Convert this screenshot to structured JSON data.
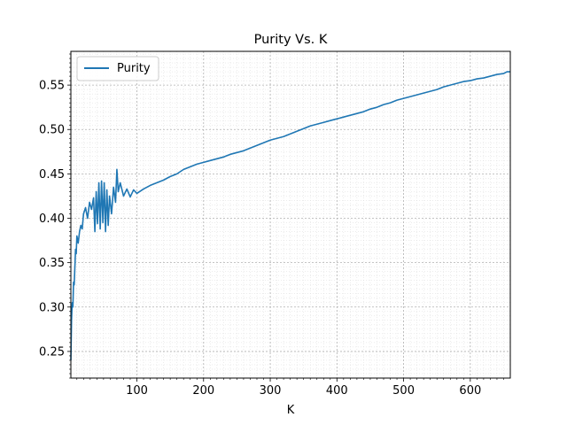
{
  "chart_data": {
    "type": "line",
    "title": "Purity Vs. K",
    "xlabel": "K",
    "ylabel": "",
    "xlim": [
      1,
      660
    ],
    "ylim": [
      0.22,
      0.588
    ],
    "xticks": [
      100,
      200,
      300,
      400,
      500,
      600
    ],
    "yticks": [
      0.25,
      0.3,
      0.35,
      0.4,
      0.45,
      0.5,
      0.55
    ],
    "ytick_labels": [
      "0.25",
      "0.30",
      "0.35",
      "0.40",
      "0.45",
      "0.50",
      "0.55"
    ],
    "grid": "major and minor, dotted",
    "legend_position": "upper-left",
    "series": [
      {
        "name": "Purity",
        "color": "#1f77b4",
        "points": [
          [
            1,
            0.24
          ],
          [
            2,
            0.285
          ],
          [
            3,
            0.305
          ],
          [
            4,
            0.3
          ],
          [
            5,
            0.328
          ],
          [
            6,
            0.325
          ],
          [
            7,
            0.345
          ],
          [
            8,
            0.365
          ],
          [
            9,
            0.36
          ],
          [
            10,
            0.38
          ],
          [
            12,
            0.372
          ],
          [
            14,
            0.385
          ],
          [
            16,
            0.392
          ],
          [
            18,
            0.388
          ],
          [
            20,
            0.405
          ],
          [
            23,
            0.412
          ],
          [
            26,
            0.4
          ],
          [
            29,
            0.418
          ],
          [
            32,
            0.41
          ],
          [
            35,
            0.423
          ],
          [
            37,
            0.385
          ],
          [
            39,
            0.43
          ],
          [
            41,
            0.394
          ],
          [
            43,
            0.44
          ],
          [
            45,
            0.388
          ],
          [
            47,
            0.442
          ],
          [
            49,
            0.395
          ],
          [
            51,
            0.44
          ],
          [
            53,
            0.385
          ],
          [
            55,
            0.432
          ],
          [
            57,
            0.392
          ],
          [
            59,
            0.425
          ],
          [
            62,
            0.405
          ],
          [
            65,
            0.435
          ],
          [
            68,
            0.418
          ],
          [
            70,
            0.455
          ],
          [
            72,
            0.43
          ],
          [
            75,
            0.44
          ],
          [
            80,
            0.425
          ],
          [
            85,
            0.433
          ],
          [
            90,
            0.424
          ],
          [
            95,
            0.432
          ],
          [
            100,
            0.428
          ],
          [
            110,
            0.433
          ],
          [
            120,
            0.437
          ],
          [
            130,
            0.44
          ],
          [
            140,
            0.443
          ],
          [
            150,
            0.447
          ],
          [
            160,
            0.45
          ],
          [
            170,
            0.455
          ],
          [
            180,
            0.458
          ],
          [
            190,
            0.461
          ],
          [
            200,
            0.463
          ],
          [
            210,
            0.465
          ],
          [
            220,
            0.467
          ],
          [
            230,
            0.469
          ],
          [
            240,
            0.472
          ],
          [
            250,
            0.474
          ],
          [
            260,
            0.476
          ],
          [
            270,
            0.479
          ],
          [
            280,
            0.482
          ],
          [
            290,
            0.485
          ],
          [
            300,
            0.488
          ],
          [
            310,
            0.49
          ],
          [
            320,
            0.492
          ],
          [
            330,
            0.495
          ],
          [
            340,
            0.498
          ],
          [
            350,
            0.501
          ],
          [
            360,
            0.504
          ],
          [
            370,
            0.506
          ],
          [
            380,
            0.508
          ],
          [
            390,
            0.51
          ],
          [
            400,
            0.512
          ],
          [
            410,
            0.514
          ],
          [
            420,
            0.516
          ],
          [
            430,
            0.518
          ],
          [
            440,
            0.52
          ],
          [
            450,
            0.523
          ],
          [
            460,
            0.525
          ],
          [
            470,
            0.528
          ],
          [
            480,
            0.53
          ],
          [
            490,
            0.533
          ],
          [
            500,
            0.535
          ],
          [
            510,
            0.537
          ],
          [
            520,
            0.539
          ],
          [
            530,
            0.541
          ],
          [
            540,
            0.543
          ],
          [
            550,
            0.545
          ],
          [
            560,
            0.548
          ],
          [
            570,
            0.55
          ],
          [
            580,
            0.552
          ],
          [
            590,
            0.554
          ],
          [
            600,
            0.555
          ],
          [
            610,
            0.557
          ],
          [
            620,
            0.558
          ],
          [
            630,
            0.56
          ],
          [
            640,
            0.562
          ],
          [
            650,
            0.563
          ],
          [
            655,
            0.565
          ],
          [
            660,
            0.565
          ]
        ]
      }
    ]
  }
}
